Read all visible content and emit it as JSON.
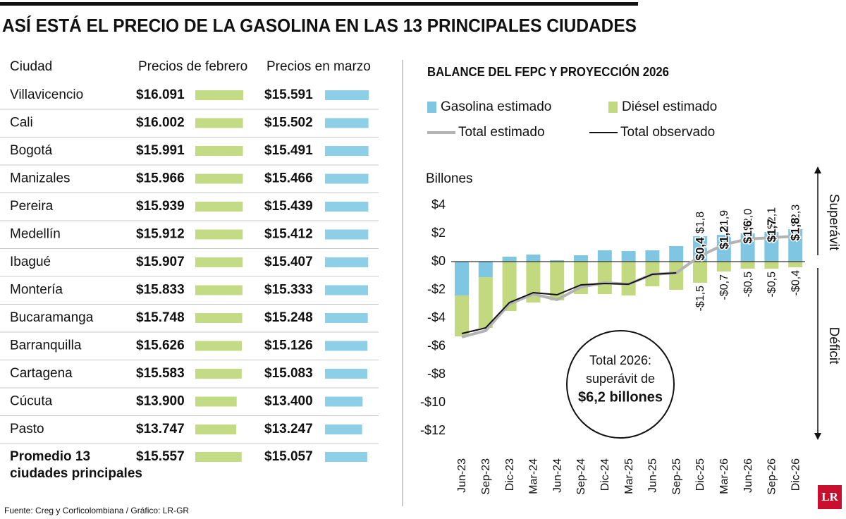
{
  "header": {
    "title": "ASÍ ESTÁ EL PRECIO DE LA GASOLINA EN LAS 13 PRINCIPALES CIUDADES"
  },
  "table": {
    "columns": [
      "Ciudad",
      "Precios de febrero",
      "Precios en marzo"
    ],
    "rows": [
      {
        "city": "Villavicencio",
        "february": 16091,
        "february_label": "$16.091",
        "march": 15591,
        "march_label": "$15.591"
      },
      {
        "city": "Cali",
        "february": 16002,
        "february_label": "$16.002",
        "march": 15502,
        "march_label": "$15.502"
      },
      {
        "city": "Bogotá",
        "february": 15991,
        "february_label": "$15.991",
        "march": 15491,
        "march_label": "$15.491"
      },
      {
        "city": "Manizales",
        "february": 15966,
        "february_label": "$15.966",
        "march": 15466,
        "march_label": "$15.466"
      },
      {
        "city": "Pereira",
        "february": 15939,
        "february_label": "$15.939",
        "march": 15439,
        "march_label": "$15.439"
      },
      {
        "city": "Medellín",
        "february": 15912,
        "february_label": "$15.912",
        "march": 15412,
        "march_label": "$15.412"
      },
      {
        "city": "Ibagué",
        "february": 15907,
        "february_label": "$15.907",
        "march": 15407,
        "march_label": "$15.407"
      },
      {
        "city": "Montería",
        "february": 15833,
        "february_label": "$15.833",
        "march": 15333,
        "march_label": "$15.333"
      },
      {
        "city": "Bucaramanga",
        "february": 15748,
        "february_label": "$15.748",
        "march": 15248,
        "march_label": "$15.248"
      },
      {
        "city": "Barranquilla",
        "february": 15626,
        "february_label": "$15.626",
        "march": 15126,
        "march_label": "$15.126"
      },
      {
        "city": "Cartagena",
        "february": 15583,
        "february_label": "$15.583",
        "march": 15083,
        "march_label": "$15.083"
      },
      {
        "city": "Cúcuta",
        "february": 13900,
        "february_label": "$13.900",
        "march": 13400,
        "march_label": "$13.400"
      },
      {
        "city": "Pasto",
        "february": 13747,
        "february_label": "$13.747",
        "march": 13247,
        "march_label": "$13.247"
      }
    ],
    "average": {
      "city": [
        "Promedio 13",
        "ciudades principales"
      ],
      "february": 15557,
      "february_label": "$15.557",
      "march": 15057,
      "march_label": "$15.057"
    },
    "february_color": "#c4db86",
    "march_color": "#8ccfe6"
  },
  "chart_data": {
    "type": "bar",
    "title": "BALANCE DEL FEPC Y PROYECCIÓN 2026",
    "y_label": "Billones",
    "categories": [
      "Jun-23",
      "Sep-23",
      "Dic-23",
      "Mar-24",
      "Jun-24",
      "Sep-24",
      "Dic-24",
      "Mar-25",
      "Jun-25",
      "Sep-25",
      "Dic-25",
      "Mar-26",
      "Jun-26",
      "Sep-26",
      "Dic-26"
    ],
    "series": [
      {
        "name": "Gasolina estimado",
        "kind": "bar",
        "color": "#7fc6e2",
        "values": [
          -2.4,
          -1.1,
          0.35,
          0.5,
          0.1,
          0.45,
          0.8,
          0.75,
          0.8,
          1.1,
          1.8,
          1.9,
          2.0,
          2.1,
          2.3
        ],
        "value_labels": [
          null,
          null,
          null,
          null,
          null,
          null,
          null,
          null,
          null,
          null,
          "$1,8",
          "$1,9",
          "$2,0",
          "$2,1",
          "$2,3"
        ]
      },
      {
        "name": "Diésel estimado",
        "kind": "bar",
        "color": "#c2d97f",
        "values": [
          -2.9,
          -3.6,
          -3.5,
          -2.9,
          -2.75,
          -2.3,
          -2.3,
          -2.4,
          -1.75,
          -2.0,
          -1.5,
          -0.7,
          -0.5,
          -0.5,
          -0.4
        ],
        "value_labels": [
          null,
          null,
          null,
          null,
          null,
          null,
          null,
          null,
          null,
          null,
          "-$1,5",
          "-$0,7",
          "-$0,5",
          "-$0,5",
          "-$0,4"
        ]
      },
      {
        "name": "Total estimado",
        "kind": "line",
        "color": "#b3b3b3",
        "values": [
          -5.35,
          -4.9,
          -3.0,
          -2.3,
          -2.7,
          -1.8,
          -1.5,
          -1.6,
          -0.9,
          -0.8,
          0.4,
          1.2,
          1.6,
          1.7,
          1.8
        ],
        "value_labels": [
          null,
          null,
          null,
          null,
          null,
          null,
          null,
          null,
          null,
          null,
          "$0,4",
          "$1,2",
          "$1,6",
          "$1,7",
          "$1,8"
        ]
      },
      {
        "name": "Total observado",
        "kind": "line",
        "color": "#111111",
        "values": [
          -5.1,
          -4.7,
          -2.9,
          -2.2,
          -2.35,
          -1.65,
          -1.55,
          -1.6,
          -0.9,
          -0.8,
          null,
          null,
          null,
          null,
          null
        ]
      }
    ],
    "ylim": [
      -12,
      4
    ],
    "yticks": [
      {
        "value": -12,
        "label": "-$12"
      },
      {
        "value": -10,
        "label": "-$10"
      },
      {
        "value": -8,
        "label": "-$8"
      },
      {
        "value": -6,
        "label": "-$6"
      },
      {
        "value": -4,
        "label": "-$4"
      },
      {
        "value": -2,
        "label": "-$2"
      },
      {
        "value": 0,
        "label": "$0"
      },
      {
        "value": 2,
        "label": "$2"
      },
      {
        "value": 4,
        "label": "$4"
      }
    ],
    "annotations": {
      "surplus": "Superávit",
      "deficit": "Déficit",
      "total_box": [
        "Total 2026:",
        "superávit de",
        "$6,2 billones"
      ]
    }
  },
  "source": "Fuente: Creg y Corficolombiana / Gráfico: LR-GR",
  "logo": "LR"
}
